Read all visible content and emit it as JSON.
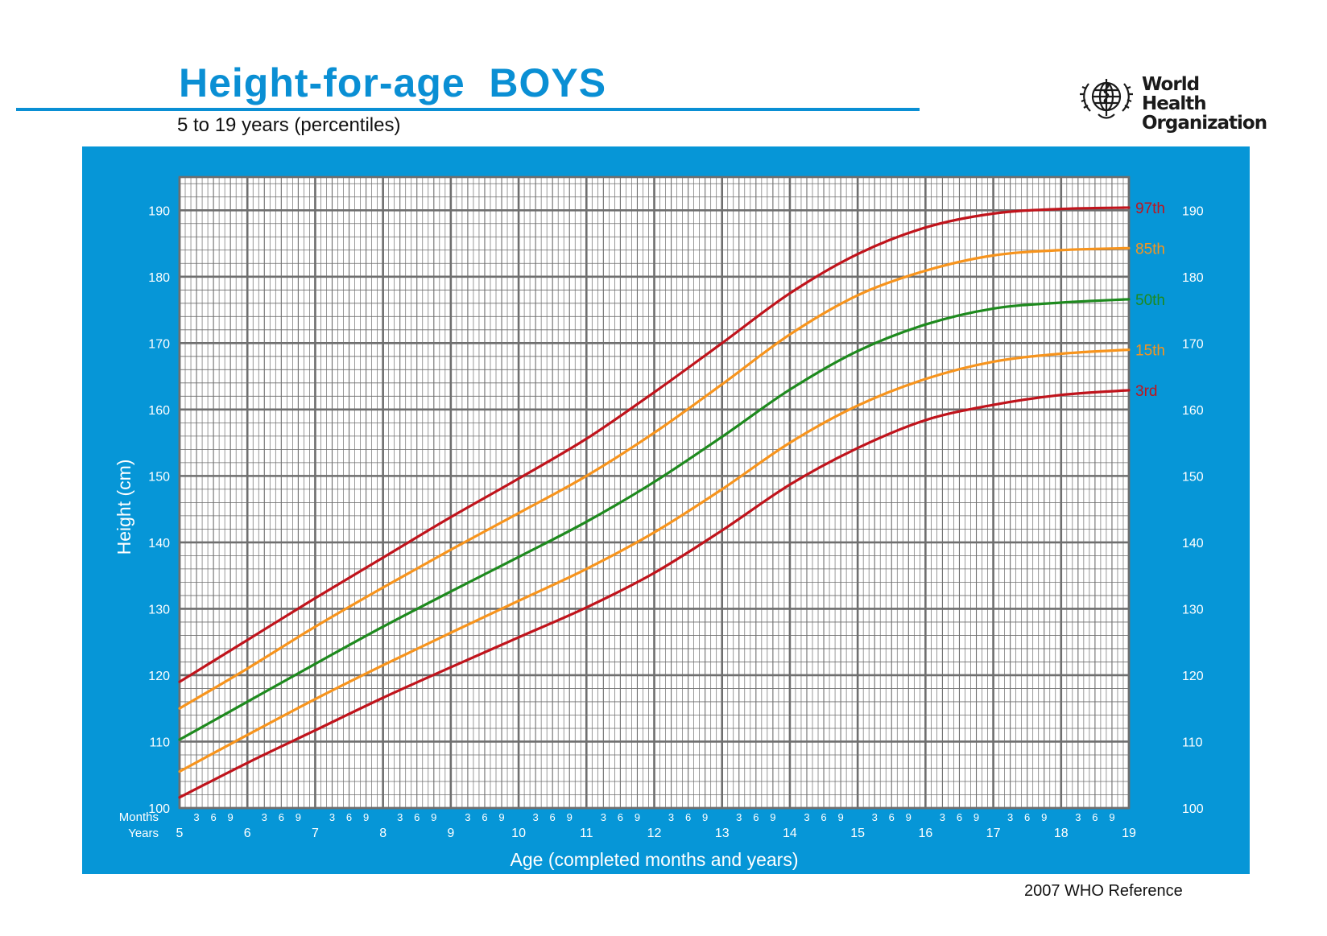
{
  "header": {
    "title": "Height-for-age  BOYS",
    "subtitle": "5 to 19 years (percentiles)"
  },
  "logo": {
    "icon": "who-emblem-icon",
    "line1": "World Health",
    "line2": "Organization"
  },
  "footer": {
    "reference": "2007 WHO Reference"
  },
  "colors": {
    "brand_blue": "#0a8fd4",
    "panel_blue": "#0696d7",
    "red": "#c0141c",
    "orange": "#f7941d",
    "green": "#1e8a1e",
    "grid": "#6e6e6e"
  },
  "chart_data": {
    "type": "line",
    "title": "Height-for-age  BOYS",
    "subtitle": "5 to 19 years (percentiles)",
    "xlabel": "Age (completed months and years)",
    "ylabel": "Height (cm)",
    "xlim": [
      5,
      19
    ],
    "ylim": [
      100,
      195
    ],
    "grid": true,
    "x_ticks": [
      5,
      6,
      7,
      8,
      9,
      10,
      11,
      12,
      13,
      14,
      15,
      16,
      17,
      18,
      19
    ],
    "y_ticks": [
      100,
      110,
      120,
      130,
      140,
      150,
      160,
      170,
      180,
      190
    ],
    "month_ticks": [
      "3",
      "6",
      "9"
    ],
    "row_labels": {
      "months": "Months",
      "years": "Years"
    },
    "x": [
      5,
      6,
      7,
      8,
      9,
      10,
      11,
      12,
      13,
      14,
      15,
      16,
      17,
      18,
      19
    ],
    "series": [
      {
        "name": "97th",
        "color": "#c0141c",
        "values": [
          119.0,
          125.3,
          131.6,
          137.7,
          143.8,
          149.6,
          155.6,
          162.6,
          170.0,
          177.5,
          183.4,
          187.4,
          189.5,
          190.2,
          190.4
        ]
      },
      {
        "name": "85th",
        "color": "#f7941d",
        "values": [
          115.0,
          121.0,
          127.3,
          133.2,
          138.9,
          144.4,
          150.0,
          156.5,
          163.8,
          171.3,
          177.2,
          180.9,
          183.2,
          184.0,
          184.3
        ]
      },
      {
        "name": "50th",
        "color": "#1e8a1e",
        "values": [
          110.3,
          116.0,
          121.7,
          127.3,
          132.6,
          137.8,
          143.1,
          149.1,
          155.9,
          163.0,
          168.8,
          172.8,
          175.2,
          176.1,
          176.6
        ]
      },
      {
        "name": "15th",
        "color": "#f7941d",
        "values": [
          105.5,
          111.0,
          116.4,
          121.5,
          126.4,
          131.2,
          136.0,
          141.5,
          148.0,
          155.0,
          160.6,
          164.6,
          167.2,
          168.4,
          169.0
        ]
      },
      {
        "name": "3rd",
        "color": "#c0141c",
        "values": [
          101.6,
          106.8,
          111.7,
          116.6,
          121.2,
          125.7,
          130.2,
          135.4,
          141.8,
          148.7,
          154.2,
          158.4,
          160.7,
          162.2,
          162.9
        ]
      }
    ]
  }
}
